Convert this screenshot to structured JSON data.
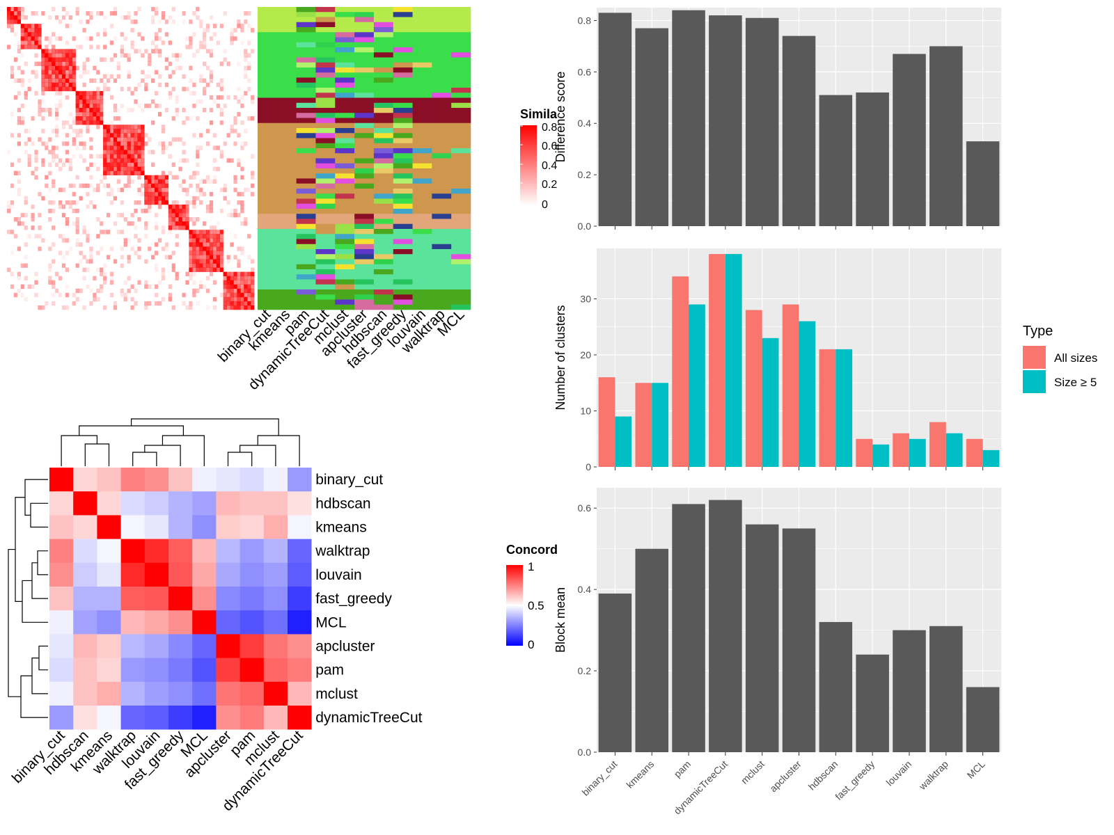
{
  "colors": {
    "panel_bg": "#ebebeb",
    "grid": "#ffffff",
    "bar_dark": "#595959",
    "type_all": "#f8766d",
    "type_size5": "#00bfc4",
    "sim_high": "#ff0000",
    "sim_low": "#ffffff",
    "conc_high": "#ff0000",
    "conc_mid": "#ffffff",
    "conc_low": "#0000ff"
  },
  "similarity_legend": {
    "title": "Simila",
    "labels": [
      "0.8",
      "0.6",
      "0.4",
      "0.2",
      "0"
    ]
  },
  "concordance_legend": {
    "title": "Concord",
    "labels": [
      "1",
      "0.5",
      "0"
    ]
  },
  "method_columns": [
    "binary_cut",
    "kmeans",
    "pam",
    "dynamicTreeCut",
    "mclust",
    "apcluster",
    "hdbscan",
    "fast_greedy",
    "louvain",
    "walktrap",
    "MCL"
  ],
  "type_legend": {
    "title": "Type",
    "items": [
      "All sizes",
      "Size ≥ 5"
    ]
  },
  "chart_data": [
    {
      "type": "heatmap",
      "name": "concordance",
      "rows": [
        "binary_cut",
        "hdbscan",
        "kmeans",
        "walktrap",
        "louvain",
        "fast_greedy",
        "MCL",
        "apcluster",
        "pam",
        "mclust",
        "dynamicTreeCut"
      ],
      "cols": [
        "binary_cut",
        "hdbscan",
        "kmeans",
        "walktrap",
        "louvain",
        "fast_greedy",
        "MCL",
        "apcluster",
        "pam",
        "mclust",
        "dynamicTreeCut"
      ],
      "values": [
        [
          1.0,
          0.58,
          0.62,
          0.75,
          0.72,
          0.62,
          0.47,
          0.45,
          0.43,
          0.47,
          0.3
        ],
        [
          0.58,
          1.0,
          0.58,
          0.43,
          0.4,
          0.35,
          0.32,
          0.64,
          0.62,
          0.62,
          0.56
        ],
        [
          0.62,
          0.58,
          1.0,
          0.48,
          0.45,
          0.35,
          0.28,
          0.6,
          0.58,
          0.66,
          0.48
        ],
        [
          0.75,
          0.43,
          0.48,
          1.0,
          0.92,
          0.82,
          0.64,
          0.36,
          0.3,
          0.35,
          0.2
        ],
        [
          0.72,
          0.4,
          0.45,
          0.92,
          1.0,
          0.83,
          0.67,
          0.33,
          0.28,
          0.31,
          0.18
        ],
        [
          0.62,
          0.35,
          0.35,
          0.82,
          0.83,
          1.0,
          0.72,
          0.27,
          0.24,
          0.28,
          0.12
        ],
        [
          0.47,
          0.32,
          0.28,
          0.64,
          0.67,
          0.72,
          1.0,
          0.2,
          0.16,
          0.22,
          0.06
        ],
        [
          0.45,
          0.64,
          0.6,
          0.36,
          0.33,
          0.27,
          0.2,
          1.0,
          0.88,
          0.77,
          0.72
        ],
        [
          0.43,
          0.62,
          0.58,
          0.3,
          0.28,
          0.24,
          0.16,
          0.88,
          1.0,
          0.8,
          0.76
        ],
        [
          0.47,
          0.62,
          0.66,
          0.35,
          0.31,
          0.28,
          0.22,
          0.77,
          0.8,
          1.0,
          0.64
        ],
        [
          0.3,
          0.56,
          0.48,
          0.2,
          0.18,
          0.12,
          0.06,
          0.72,
          0.76,
          0.64,
          1.0
        ]
      ],
      "legend_title": "Concord",
      "range": [
        0,
        1
      ]
    },
    {
      "type": "bar",
      "name": "difference_score",
      "categories": [
        "binary_cut",
        "kmeans",
        "pam",
        "dynamicTreeCut",
        "mclust",
        "apcluster",
        "hdbscan",
        "fast_greedy",
        "louvain",
        "walktrap",
        "MCL"
      ],
      "values": [
        0.83,
        0.77,
        0.84,
        0.82,
        0.81,
        0.74,
        0.51,
        0.52,
        0.67,
        0.7,
        0.33
      ],
      "ylabel": "Difference score",
      "ylim": [
        0,
        0.85
      ],
      "yticks": [
        "0.0",
        "0.2",
        "0.4",
        "0.6",
        "0.8"
      ],
      "grid": true
    },
    {
      "type": "bar",
      "name": "number_of_clusters",
      "categories": [
        "binary_cut",
        "kmeans",
        "pam",
        "dynamicTreeCut",
        "mclust",
        "apcluster",
        "hdbscan",
        "fast_greedy",
        "louvain",
        "walktrap",
        "MCL"
      ],
      "series": [
        {
          "name": "All sizes",
          "values": [
            16,
            15,
            34,
            38,
            28,
            29,
            21,
            5,
            6,
            8,
            5
          ]
        },
        {
          "name": "Size ≥ 5",
          "values": [
            9,
            15,
            29,
            38,
            23,
            26,
            21,
            4,
            5,
            6,
            3
          ]
        }
      ],
      "ylabel": "Number of clusters",
      "ylim": [
        0,
        39
      ],
      "yticks": [
        "0",
        "10",
        "20",
        "30"
      ],
      "legend": "right",
      "grid": true
    },
    {
      "type": "bar",
      "name": "block_mean",
      "categories": [
        "binary_cut",
        "kmeans",
        "pam",
        "dynamicTreeCut",
        "mclust",
        "apcluster",
        "hdbscan",
        "fast_greedy",
        "louvain",
        "walktrap",
        "MCL"
      ],
      "values": [
        0.39,
        0.5,
        0.61,
        0.62,
        0.56,
        0.55,
        0.32,
        0.24,
        0.3,
        0.31,
        0.16
      ],
      "ylabel": "Block mean",
      "ylim": [
        0,
        0.65
      ],
      "yticks": [
        "0.0",
        "0.2",
        "0.4",
        "0.6"
      ],
      "grid": true
    }
  ]
}
